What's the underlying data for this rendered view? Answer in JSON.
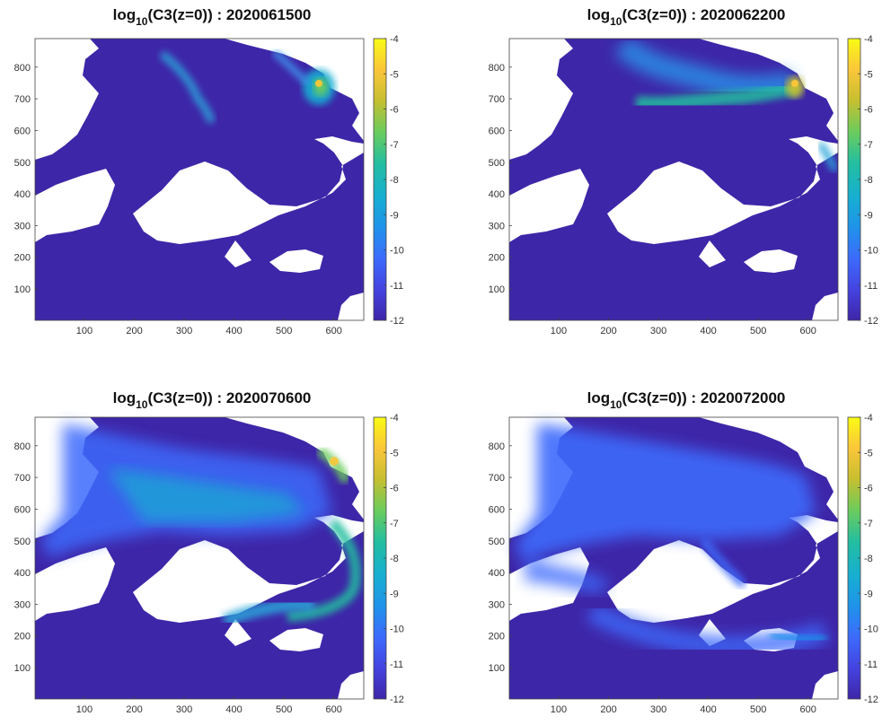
{
  "chart_data": [
    {
      "type": "heatmap",
      "title_prefix": "log",
      "title_sub": "10",
      "title_suffix": "(C3(z=0)) : 2020061500",
      "xticks": [
        100,
        200,
        300,
        400,
        500,
        600
      ],
      "yticks": [
        100,
        200,
        300,
        400,
        500,
        600,
        700,
        800
      ],
      "xlim": [
        1,
        660
      ],
      "ylim": [
        1,
        890
      ],
      "clim": [
        -12,
        -4
      ],
      "cticks": [
        -4,
        -5,
        -6,
        -7,
        -8,
        -9,
        -10,
        -11,
        -12
      ],
      "colormap": "parula",
      "plume_extent": "narrow"
    },
    {
      "type": "heatmap",
      "title_prefix": "log",
      "title_sub": "10",
      "title_suffix": "(C3(z=0)) : 2020062200",
      "xticks": [
        100,
        200,
        300,
        400,
        500,
        600
      ],
      "yticks": [
        100,
        200,
        300,
        400,
        500,
        600,
        700,
        800
      ],
      "xlim": [
        1,
        660
      ],
      "ylim": [
        1,
        890
      ],
      "clim": [
        -12,
        -4
      ],
      "cticks": [
        -4,
        -5,
        -6,
        -7,
        -8,
        -9,
        -10,
        -11,
        -12
      ],
      "colormap": "parula",
      "plume_extent": "medium"
    },
    {
      "type": "heatmap",
      "title_prefix": "log",
      "title_sub": "10",
      "title_suffix": "(C3(z=0)) : 2020070600",
      "xticks": [
        100,
        200,
        300,
        400,
        500,
        600
      ],
      "yticks": [
        100,
        200,
        300,
        400,
        500,
        600,
        700,
        800
      ],
      "xlim": [
        1,
        660
      ],
      "ylim": [
        1,
        890
      ],
      "clim": [
        -12,
        -4
      ],
      "cticks": [
        -4,
        -5,
        -6,
        -7,
        -8,
        -9,
        -10,
        -11,
        -12
      ],
      "colormap": "parula",
      "plume_extent": "wide"
    },
    {
      "type": "heatmap",
      "title_prefix": "log",
      "title_sub": "10",
      "title_suffix": "(C3(z=0)) : 2020072000",
      "xticks": [
        100,
        200,
        300,
        400,
        500,
        600
      ],
      "yticks": [
        100,
        200,
        300,
        400,
        500,
        600,
        700,
        800
      ],
      "xlim": [
        1,
        660
      ],
      "ylim": [
        1,
        890
      ],
      "clim": [
        -12,
        -4
      ],
      "cticks": [
        -4,
        -5,
        -6,
        -7,
        -8,
        -9,
        -10,
        -11,
        -12
      ],
      "colormap": "parula",
      "plume_extent": "widest"
    }
  ],
  "colors": {
    "background_value": "#3e26a8",
    "land": "#ffffff",
    "colormap_stops": [
      "#3e26a8",
      "#4443e0",
      "#3d6bfc",
      "#1f93ea",
      "#17afd1",
      "#24be9f",
      "#6ccc5c",
      "#c6bf30",
      "#fbc63a",
      "#f9fb15"
    ]
  }
}
